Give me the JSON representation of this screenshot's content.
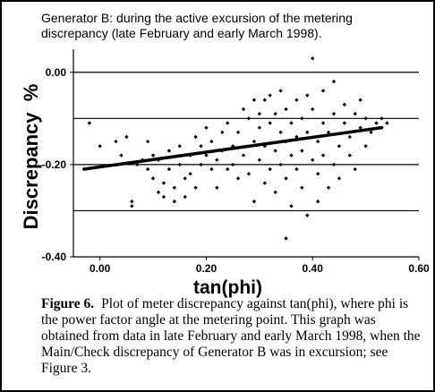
{
  "figure": {
    "caption_label": "Figure 6.",
    "caption_text": "Plot of meter discrepancy against tan(phi), where phi is the power factor angle at the metering point. This graph was obtained from data in late February and early March 1998, when the Main/Check discrepancy of Generator B was in excursion; see Figure 3."
  },
  "chart_data": {
    "type": "scatter",
    "title": "Generator B:  during the active excursion of the metering discrepancy (late February and early March 1998).",
    "xlabel": "tan(phi)",
    "ylabel": "Discrepancy  %",
    "xlim": [
      -0.05,
      0.6
    ],
    "ylim": [
      -0.4,
      0.05
    ],
    "x_ticks": [
      "0.00",
      "0.20",
      "0.40",
      "0.60"
    ],
    "y_ticks": [
      "0.00",
      "-0.20",
      "-0.40"
    ],
    "gridlines_y": [
      0.0,
      -0.1,
      -0.2,
      -0.3
    ],
    "trendline": {
      "x": [
        -0.03,
        0.53
      ],
      "y": [
        -0.21,
        -0.12
      ]
    },
    "colors": {
      "points": "#000000",
      "line": "#000000"
    },
    "points": [
      [
        -0.02,
        -0.11
      ],
      [
        0.0,
        -0.16
      ],
      [
        0.03,
        -0.15
      ],
      [
        0.04,
        -0.18
      ],
      [
        0.05,
        -0.14
      ],
      [
        0.06,
        -0.29
      ],
      [
        0.06,
        -0.28
      ],
      [
        0.07,
        -0.2
      ],
      [
        0.08,
        -0.19
      ],
      [
        0.09,
        -0.15
      ],
      [
        0.09,
        -0.21
      ],
      [
        0.1,
        -0.18
      ],
      [
        0.1,
        -0.23
      ],
      [
        0.11,
        -0.26
      ],
      [
        0.11,
        -0.19
      ],
      [
        0.12,
        -0.24
      ],
      [
        0.12,
        -0.27
      ],
      [
        0.13,
        -0.17
      ],
      [
        0.13,
        -0.21
      ],
      [
        0.14,
        -0.25
      ],
      [
        0.14,
        -0.28
      ],
      [
        0.15,
        -0.16
      ],
      [
        0.15,
        -0.2
      ],
      [
        0.16,
        -0.23
      ],
      [
        0.16,
        -0.27
      ],
      [
        0.17,
        -0.18
      ],
      [
        0.17,
        -0.22
      ],
      [
        0.18,
        -0.14
      ],
      [
        0.18,
        -0.25
      ],
      [
        0.19,
        -0.16
      ],
      [
        0.19,
        -0.2
      ],
      [
        0.2,
        -0.12
      ],
      [
        0.2,
        -0.18
      ],
      [
        0.21,
        -0.21
      ],
      [
        0.21,
        -0.15
      ],
      [
        0.22,
        -0.19
      ],
      [
        0.22,
        -0.25
      ],
      [
        0.23,
        -0.13
      ],
      [
        0.23,
        -0.17
      ],
      [
        0.24,
        -0.21
      ],
      [
        0.24,
        -0.11
      ],
      [
        0.25,
        -0.16
      ],
      [
        0.25,
        -0.2
      ],
      [
        0.26,
        -0.23
      ],
      [
        0.26,
        -0.13
      ],
      [
        0.27,
        -0.18
      ],
      [
        0.27,
        -0.08
      ],
      [
        0.28,
        -0.22
      ],
      [
        0.28,
        -0.1
      ],
      [
        0.29,
        -0.15
      ],
      [
        0.29,
        -0.06
      ],
      [
        0.29,
        -0.28
      ],
      [
        0.3,
        -0.19
      ],
      [
        0.3,
        -0.12
      ],
      [
        0.3,
        -0.09
      ],
      [
        0.31,
        -0.24
      ],
      [
        0.31,
        -0.16
      ],
      [
        0.31,
        -0.06
      ],
      [
        0.32,
        -0.21
      ],
      [
        0.32,
        -0.11
      ],
      [
        0.32,
        -0.05
      ],
      [
        0.33,
        -0.17
      ],
      [
        0.33,
        -0.26
      ],
      [
        0.33,
        -0.09
      ],
      [
        0.34,
        -0.13
      ],
      [
        0.34,
        -0.2
      ],
      [
        0.34,
        -0.04
      ],
      [
        0.35,
        -0.23
      ],
      [
        0.35,
        -0.15
      ],
      [
        0.35,
        -0.08
      ],
      [
        0.35,
        -0.36
      ],
      [
        0.36,
        -0.29
      ],
      [
        0.36,
        -0.18
      ],
      [
        0.36,
        -0.11
      ],
      [
        0.37,
        -0.14
      ],
      [
        0.37,
        -0.21
      ],
      [
        0.37,
        -0.06
      ],
      [
        0.38,
        -0.25
      ],
      [
        0.38,
        -0.1
      ],
      [
        0.38,
        -0.17
      ],
      [
        0.39,
        -0.31
      ],
      [
        0.39,
        -0.13
      ],
      [
        0.39,
        -0.05
      ],
      [
        0.4,
        -0.19
      ],
      [
        0.4,
        -0.08
      ],
      [
        0.4,
        0.03
      ],
      [
        0.41,
        -0.22
      ],
      [
        0.41,
        -0.15
      ],
      [
        0.41,
        -0.28
      ],
      [
        0.42,
        -0.11
      ],
      [
        0.42,
        -0.18
      ],
      [
        0.42,
        -0.04
      ],
      [
        0.43,
        -0.25
      ],
      [
        0.43,
        -0.13
      ],
      [
        0.44,
        -0.09
      ],
      [
        0.44,
        -0.2
      ],
      [
        0.44,
        -0.02
      ],
      [
        0.45,
        -0.16
      ],
      [
        0.45,
        -0.23
      ],
      [
        0.46,
        -0.11
      ],
      [
        0.46,
        -0.07
      ],
      [
        0.47,
        -0.18
      ],
      [
        0.47,
        -0.14
      ],
      [
        0.48,
        -0.09
      ],
      [
        0.48,
        -0.21
      ],
      [
        0.49,
        -0.12
      ],
      [
        0.49,
        -0.06
      ],
      [
        0.5,
        -0.16
      ],
      [
        0.5,
        -0.1
      ],
      [
        0.51,
        -0.13
      ],
      [
        0.52,
        -0.11
      ],
      [
        0.53,
        -0.12
      ],
      [
        0.53,
        -0.1
      ],
      [
        0.54,
        -0.11
      ]
    ]
  }
}
